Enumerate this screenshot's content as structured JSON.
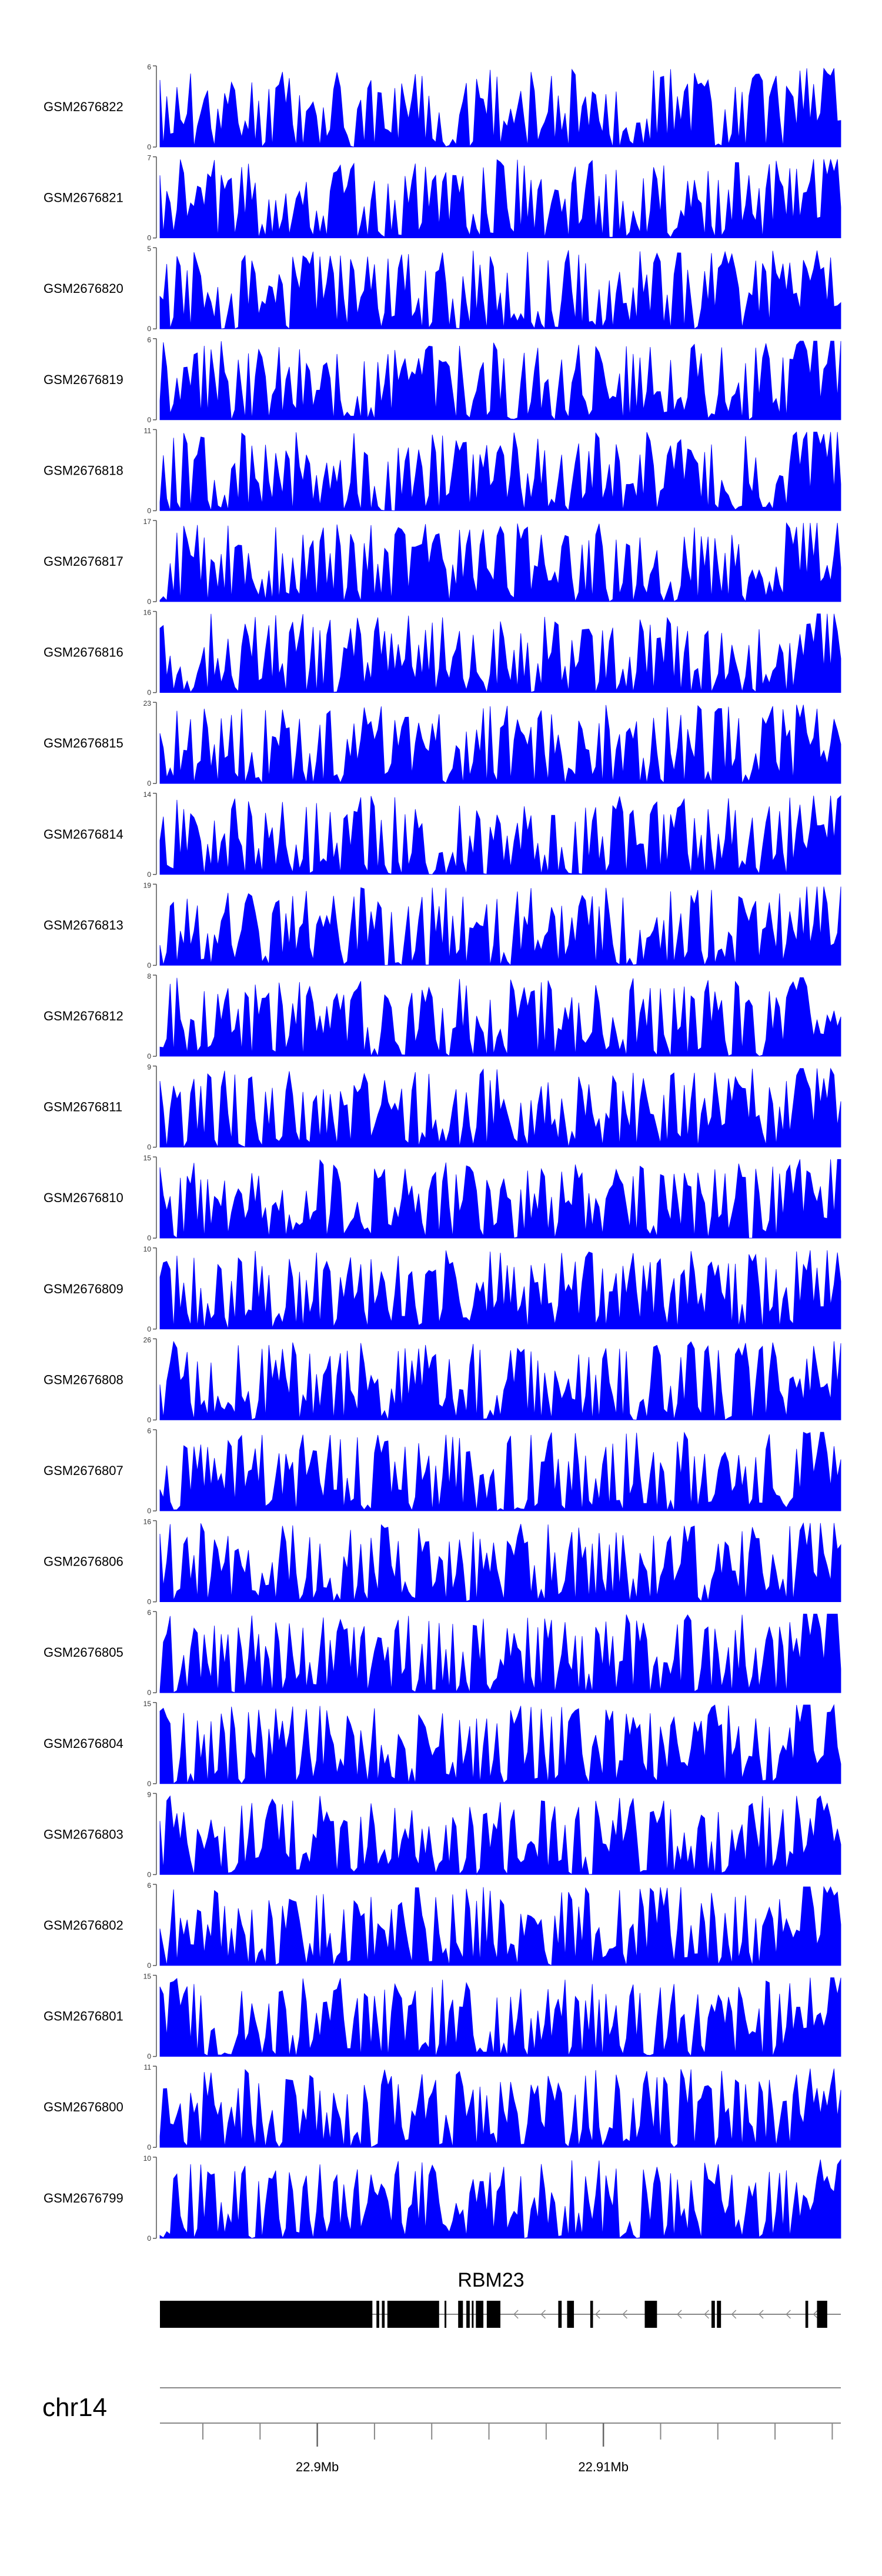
{
  "chart_data": {
    "type": "area",
    "description": "Genome coverage tracks (Gviz style) over RBM23 region",
    "color": "#0000ff",
    "tracks": [
      {
        "name": "GSM2676822",
        "ymax": 6,
        "ymin": 0,
        "seed": 11
      },
      {
        "name": "GSM2676821",
        "ymax": 7,
        "ymin": 0,
        "seed": 12
      },
      {
        "name": "GSM2676820",
        "ymax": 5,
        "ymin": 0,
        "seed": 13
      },
      {
        "name": "GSM2676819",
        "ymax": 6,
        "ymin": 0,
        "seed": 14
      },
      {
        "name": "GSM2676818",
        "ymax": 11,
        "ymin": 0,
        "seed": 15
      },
      {
        "name": "GSM2676817",
        "ymax": 17,
        "ymin": 0,
        "seed": 16
      },
      {
        "name": "GSM2676816",
        "ymax": 16,
        "ymin": 0,
        "seed": 17
      },
      {
        "name": "GSM2676815",
        "ymax": 23,
        "ymin": 0,
        "seed": 18
      },
      {
        "name": "GSM2676814",
        "ymax": 14,
        "ymin": 0,
        "seed": 19
      },
      {
        "name": "GSM2676813",
        "ymax": 19,
        "ymin": 0,
        "seed": 20
      },
      {
        "name": "GSM2676812",
        "ymax": 8,
        "ymin": 0,
        "seed": 21
      },
      {
        "name": "GSM2676811",
        "ymax": 9,
        "ymin": 0,
        "seed": 22
      },
      {
        "name": "GSM2676810",
        "ymax": 15,
        "ymin": 0,
        "seed": 23
      },
      {
        "name": "GSM2676809",
        "ymax": 10,
        "ymin": 0,
        "seed": 24
      },
      {
        "name": "GSM2676808",
        "ymax": 26,
        "ymin": 0,
        "seed": 25
      },
      {
        "name": "GSM2676807",
        "ymax": 6,
        "ymin": 0,
        "seed": 26
      },
      {
        "name": "GSM2676806",
        "ymax": 16,
        "ymin": 0,
        "seed": 27
      },
      {
        "name": "GSM2676805",
        "ymax": 6,
        "ymin": 0,
        "seed": 28
      },
      {
        "name": "GSM2676804",
        "ymax": 15,
        "ymin": 0,
        "seed": 29
      },
      {
        "name": "GSM2676803",
        "ymax": 9,
        "ymin": 0,
        "seed": 30
      },
      {
        "name": "GSM2676802",
        "ymax": 6,
        "ymin": 0,
        "seed": 31
      },
      {
        "name": "GSM2676801",
        "ymax": 15,
        "ymin": 0,
        "seed": 32
      },
      {
        "name": "GSM2676800",
        "ymax": 11,
        "ymin": 0,
        "seed": 33
      },
      {
        "name": "GSM2676799",
        "ymax": 10,
        "ymin": 0,
        "seed": 34
      }
    ],
    "gene": {
      "name": "RBM23",
      "strand": "-",
      "exons": [
        [
          0.0,
          0.31
        ],
        [
          0.305,
          0.312
        ],
        [
          0.318,
          0.322
        ],
        [
          0.326,
          0.33
        ],
        [
          0.334,
          0.41
        ],
        [
          0.418,
          0.42
        ],
        [
          0.438,
          0.445
        ],
        [
          0.45,
          0.455
        ],
        [
          0.458,
          0.46
        ],
        [
          0.464,
          0.475
        ],
        [
          0.48,
          0.5
        ],
        [
          0.585,
          0.59
        ],
        [
          0.598,
          0.608
        ],
        [
          0.632,
          0.636
        ],
        [
          0.712,
          0.73
        ],
        [
          0.81,
          0.815
        ],
        [
          0.818,
          0.824
        ],
        [
          0.948,
          0.952
        ],
        [
          0.965,
          0.98
        ]
      ]
    },
    "chromosome": "chr14",
    "axis": {
      "start_mb": 22.8945,
      "end_mb": 22.9183,
      "major_ticks": [
        22.9,
        22.91
      ],
      "major_tick_labels": [
        "22.9Mb",
        "22.91Mb"
      ],
      "minor_step_mb": 0.002
    }
  }
}
